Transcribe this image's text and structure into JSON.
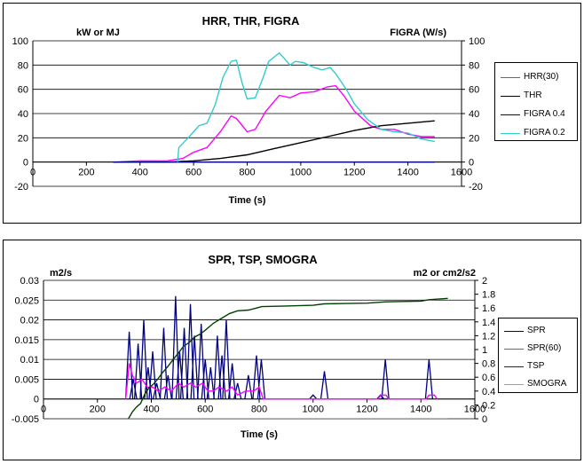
{
  "chart_data": [
    {
      "type": "line",
      "title": "HRR, THR, FIGRA",
      "y_unit_left": "kW or MJ",
      "y_unit_right": "FIGRA (W/s)",
      "xlabel": "Time (s)",
      "xlim": [
        0,
        1600
      ],
      "ylim_left": [
        -20,
        100
      ],
      "ylim_right": [
        -20,
        100
      ],
      "x_ticks": [
        "0",
        "200",
        "400",
        "600",
        "800",
        "1000",
        "1200",
        "1400",
        "1600"
      ],
      "y_ticks_left": [
        "-20",
        "0",
        "20",
        "40",
        "60",
        "80",
        "100"
      ],
      "y_ticks_right": [
        "-20",
        "0",
        "20",
        "40",
        "60",
        "80",
        "100"
      ],
      "legend_position": "right",
      "grid": "horizontal",
      "series": [
        {
          "name": "HRR(30)",
          "color": "#ff00ff",
          "axis": "left",
          "points": [
            [
              300,
              0
            ],
            [
              400,
              1
            ],
            [
              500,
              1
            ],
            [
              560,
              3
            ],
            [
              600,
              8
            ],
            [
              650,
              12
            ],
            [
              700,
              25
            ],
            [
              740,
              38
            ],
            [
              760,
              36
            ],
            [
              800,
              25
            ],
            [
              830,
              27
            ],
            [
              870,
              42
            ],
            [
              920,
              55
            ],
            [
              960,
              53
            ],
            [
              1000,
              57
            ],
            [
              1050,
              58
            ],
            [
              1100,
              62
            ],
            [
              1130,
              63
            ],
            [
              1160,
              55
            ],
            [
              1200,
              42
            ],
            [
              1260,
              30
            ],
            [
              1300,
              27
            ],
            [
              1350,
              27
            ],
            [
              1400,
              23
            ],
            [
              1450,
              21
            ],
            [
              1500,
              21
            ]
          ]
        },
        {
          "name": "THR",
          "color": "#000000",
          "axis": "left",
          "points": [
            [
              300,
              0
            ],
            [
              500,
              0
            ],
            [
              600,
              1
            ],
            [
              700,
              3
            ],
            [
              800,
              6
            ],
            [
              900,
              11
            ],
            [
              1000,
              16
            ],
            [
              1100,
              21
            ],
            [
              1200,
              26
            ],
            [
              1300,
              30
            ],
            [
              1400,
              32
            ],
            [
              1500,
              34
            ]
          ]
        },
        {
          "name": "FIGRA 0.4",
          "color": "#000080",
          "axis": "right",
          "points": [
            [
              300,
              0
            ],
            [
              1500,
              0
            ]
          ]
        },
        {
          "name": "FIGRA 0.2",
          "color": "#33cccc",
          "axis": "right",
          "points": [
            [
              540,
              0
            ],
            [
              545,
              12
            ],
            [
              580,
              20
            ],
            [
              600,
              25
            ],
            [
              620,
              30
            ],
            [
              650,
              32
            ],
            [
              680,
              47
            ],
            [
              710,
              70
            ],
            [
              740,
              83
            ],
            [
              760,
              84
            ],
            [
              780,
              66
            ],
            [
              800,
              52
            ],
            [
              830,
              53
            ],
            [
              860,
              70
            ],
            [
              880,
              83
            ],
            [
              920,
              90
            ],
            [
              960,
              80
            ],
            [
              980,
              83
            ],
            [
              1010,
              82
            ],
            [
              1050,
              78
            ],
            [
              1080,
              76
            ],
            [
              1110,
              78
            ],
            [
              1130,
              73
            ],
            [
              1170,
              60
            ],
            [
              1200,
              48
            ],
            [
              1250,
              35
            ],
            [
              1300,
              27
            ],
            [
              1350,
              25
            ],
            [
              1400,
              24
            ],
            [
              1450,
              19
            ],
            [
              1500,
              17
            ]
          ]
        }
      ]
    },
    {
      "type": "line",
      "title": "SPR, TSP, SMOGRA",
      "y_unit_left": "m2/s",
      "y_unit_right": "m2 or cm2/s2",
      "xlabel": "Time (s)",
      "xlim": [
        0,
        1600
      ],
      "ylim_left": [
        -0.005,
        0.03
      ],
      "ylim_right": [
        0,
        2
      ],
      "x_ticks": [
        "0",
        "200",
        "400",
        "600",
        "800",
        "1000",
        "1200",
        "1400",
        "1600"
      ],
      "y_ticks_left": [
        "-0.005",
        "0",
        "0.005",
        "0.01",
        "0.015",
        "0.02",
        "0.025",
        "0.03"
      ],
      "y_ticks_right": [
        "0",
        "0.2",
        "0.4",
        "0.6",
        "0.8",
        "1",
        "1.2",
        "1.4",
        "1.6",
        "1.8",
        "2"
      ],
      "legend_position": "right",
      "grid": "horizontal",
      "series": [
        {
          "name": "SPR",
          "color": "#000080",
          "axis": "left",
          "spikes": [
            [
              318,
              0.017
            ],
            [
              333,
              0.005
            ],
            [
              351,
              0.014
            ],
            [
              372,
              0.02
            ],
            [
              388,
              0.008
            ],
            [
              405,
              0.012
            ],
            [
              420,
              0.004
            ],
            [
              446,
              0.018
            ],
            [
              462,
              0.006
            ],
            [
              490,
              0.026
            ],
            [
              505,
              0.012
            ],
            [
              522,
              0.018
            ],
            [
              545,
              0.024
            ],
            [
              560,
              0.016
            ],
            [
              585,
              0.019
            ],
            [
              600,
              0.01
            ],
            [
              620,
              0.008
            ],
            [
              645,
              0.016
            ],
            [
              662,
              0.011
            ],
            [
              678,
              0.02
            ],
            [
              700,
              0.009
            ],
            [
              720,
              0.004
            ],
            [
              760,
              0.006
            ],
            [
              790,
              0.011
            ],
            [
              808,
              0.01
            ],
            [
              1000,
              0.001
            ],
            [
              1042,
              0.007
            ],
            [
              1250,
              0.001
            ],
            [
              1268,
              0.01
            ],
            [
              1430,
              0.01
            ]
          ]
        },
        {
          "name": "SPR(60)",
          "color": "#ff00ff",
          "axis": "left",
          "points": [
            [
              305,
              0
            ],
            [
              318,
              0.009
            ],
            [
              330,
              0.006
            ],
            [
              345,
              0.004
            ],
            [
              365,
              0.005
            ],
            [
              385,
              0.003
            ],
            [
              405,
              0.003
            ],
            [
              425,
              0.002
            ],
            [
              450,
              0.003
            ],
            [
              475,
              0.002
            ],
            [
              500,
              0.004
            ],
            [
              520,
              0.003
            ],
            [
              545,
              0.004
            ],
            [
              565,
              0.003
            ],
            [
              590,
              0.004
            ],
            [
              610,
              0.002
            ],
            [
              630,
              0.002
            ],
            [
              650,
              0.003
            ],
            [
              680,
              0.002
            ],
            [
              700,
              0.003
            ],
            [
              720,
              0.001
            ],
            [
              750,
              0.002
            ],
            [
              780,
              0.002
            ],
            [
              800,
              0.003
            ],
            [
              815,
              0
            ],
            [
              1240,
              0
            ],
            [
              1252,
              0.001
            ],
            [
              1270,
              0.001
            ],
            [
              1280,
              0
            ],
            [
              1420,
              0
            ],
            [
              1430,
              0.001
            ],
            [
              1450,
              0.001
            ],
            [
              1460,
              0
            ]
          ]
        },
        {
          "name": "TSP",
          "color": "#004000",
          "axis": "right",
          "points": [
            [
              315,
              0
            ],
            [
              330,
              0.1
            ],
            [
              345,
              0.17
            ],
            [
              360,
              0.22
            ],
            [
              375,
              0.35
            ],
            [
              392,
              0.45
            ],
            [
              408,
              0.5
            ],
            [
              425,
              0.58
            ],
            [
              440,
              0.66
            ],
            [
              460,
              0.75
            ],
            [
              480,
              0.85
            ],
            [
              500,
              0.95
            ],
            [
              520,
              1.05
            ],
            [
              540,
              1.1
            ],
            [
              560,
              1.18
            ],
            [
              580,
              1.22
            ],
            [
              600,
              1.28
            ],
            [
              630,
              1.38
            ],
            [
              660,
              1.45
            ],
            [
              690,
              1.52
            ],
            [
              720,
              1.56
            ],
            [
              760,
              1.57
            ],
            [
              790,
              1.6
            ],
            [
              810,
              1.62
            ],
            [
              900,
              1.63
            ],
            [
              1000,
              1.64
            ],
            [
              1040,
              1.66
            ],
            [
              1200,
              1.67
            ],
            [
              1270,
              1.69
            ],
            [
              1400,
              1.7
            ],
            [
              1430,
              1.72
            ],
            [
              1500,
              1.74
            ]
          ]
        },
        {
          "name": "SMOGRA",
          "color": "#33cccc",
          "axis": "right",
          "points": [
            [
              318,
              0
            ],
            [
              1500,
              0
            ]
          ]
        }
      ]
    }
  ]
}
